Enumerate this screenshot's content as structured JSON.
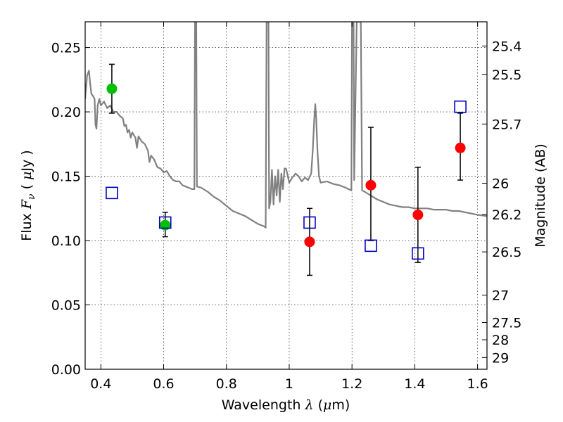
{
  "chart_data": {
    "type": "scatter",
    "xlabel_text": "Wavelength",
    "xlabel_symbol": "λ",
    "xlabel_unit_open": " (",
    "xlabel_unit_mu": "μ",
    "xlabel_unit_close": "m)",
    "ylabel_text": "Flux",
    "ylabel_symbol_base": "F",
    "ylabel_symbol_sub": "ν",
    "ylabel_unit_open": "( ",
    "ylabel_unit_mu": "μ",
    "ylabel_unit_close": "Jy )",
    "y2label": "Magnitude (AB)",
    "xlim": [
      0.35,
      1.63
    ],
    "ylim": [
      0.0,
      0.27
    ],
    "grid": true,
    "x_ticks": [
      {
        "value": 0.4,
        "label": "0.4"
      },
      {
        "value": 0.6,
        "label": "0.6"
      },
      {
        "value": 0.8,
        "label": "0.8"
      },
      {
        "value": 1.0,
        "label": "1"
      },
      {
        "value": 1.2,
        "label": "1.2"
      },
      {
        "value": 1.4,
        "label": "1.4"
      },
      {
        "value": 1.6,
        "label": "1.6"
      }
    ],
    "y_ticks": [
      {
        "value": 0.0,
        "label": "0.00"
      },
      {
        "value": 0.05,
        "label": "0.05"
      },
      {
        "value": 0.1,
        "label": "0.10"
      },
      {
        "value": 0.15,
        "label": "0.15"
      },
      {
        "value": 0.2,
        "label": "0.20"
      },
      {
        "value": 0.25,
        "label": "0.25"
      }
    ],
    "y2_ticks": [
      {
        "value": 25.4,
        "label": "25.4"
      },
      {
        "value": 25.5,
        "label": "25.5"
      },
      {
        "value": 25.7,
        "label": "25.7"
      },
      {
        "value": 26,
        "label": "26"
      },
      {
        "value": 26.2,
        "label": "26.2"
      },
      {
        "value": 26.5,
        "label": "26.5"
      },
      {
        "value": 27,
        "label": "27"
      },
      {
        "value": 27.5,
        "label": "27.5"
      },
      {
        "value": 28,
        "label": "28"
      },
      {
        "value": 29,
        "label": "29"
      }
    ],
    "model_spectrum": {
      "color": "#808080",
      "points": [
        [
          0.35,
          0.21
        ],
        [
          0.356,
          0.228
        ],
        [
          0.362,
          0.232
        ],
        [
          0.366,
          0.222
        ],
        [
          0.37,
          0.214
        ],
        [
          0.376,
          0.212
        ],
        [
          0.38,
          0.21
        ],
        [
          0.383,
          0.19
        ],
        [
          0.386,
          0.187
        ],
        [
          0.39,
          0.205
        ],
        [
          0.395,
          0.21
        ],
        [
          0.4,
          0.205
        ],
        [
          0.41,
          0.208
        ],
        [
          0.42,
          0.203
        ],
        [
          0.43,
          0.205
        ],
        [
          0.44,
          0.2
        ],
        [
          0.45,
          0.2
        ],
        [
          0.46,
          0.197
        ],
        [
          0.47,
          0.195
        ],
        [
          0.475,
          0.189
        ],
        [
          0.48,
          0.19
        ],
        [
          0.485,
          0.184
        ],
        [
          0.49,
          0.186
        ],
        [
          0.495,
          0.18
        ],
        [
          0.5,
          0.184
        ],
        [
          0.51,
          0.18
        ],
        [
          0.515,
          0.172
        ],
        [
          0.52,
          0.181
        ],
        [
          0.53,
          0.177
        ],
        [
          0.54,
          0.175
        ],
        [
          0.55,
          0.17
        ],
        [
          0.555,
          0.161
        ],
        [
          0.56,
          0.166
        ],
        [
          0.57,
          0.163
        ],
        [
          0.58,
          0.157
        ],
        [
          0.59,
          0.156
        ],
        [
          0.6,
          0.153
        ],
        [
          0.61,
          0.154
        ],
        [
          0.62,
          0.15
        ],
        [
          0.63,
          0.147
        ],
        [
          0.64,
          0.146
        ],
        [
          0.65,
          0.146
        ],
        [
          0.66,
          0.143
        ],
        [
          0.67,
          0.142
        ],
        [
          0.68,
          0.141
        ],
        [
          0.69,
          0.14
        ],
        [
          0.698,
          0.14
        ],
        [
          0.7,
          0.27
        ],
        [
          0.704,
          0.27
        ],
        [
          0.706,
          0.142
        ],
        [
          0.72,
          0.141
        ],
        [
          0.74,
          0.138
        ],
        [
          0.76,
          0.134
        ],
        [
          0.78,
          0.131
        ],
        [
          0.8,
          0.127
        ],
        [
          0.82,
          0.123
        ],
        [
          0.84,
          0.121
        ],
        [
          0.86,
          0.119
        ],
        [
          0.88,
          0.116
        ],
        [
          0.9,
          0.113
        ],
        [
          0.92,
          0.111
        ],
        [
          0.925,
          0.11
        ],
        [
          0.928,
          0.27
        ],
        [
          0.934,
          0.27
        ],
        [
          0.936,
          0.125
        ],
        [
          0.94,
          0.13
        ],
        [
          0.945,
          0.155
        ],
        [
          0.95,
          0.128
        ],
        [
          0.955,
          0.15
        ],
        [
          0.96,
          0.135
        ],
        [
          0.965,
          0.155
        ],
        [
          0.97,
          0.13
        ],
        [
          0.975,
          0.152
        ],
        [
          0.98,
          0.14
        ],
        [
          0.985,
          0.156
        ],
        [
          0.99,
          0.156
        ],
        [
          1.0,
          0.145
        ],
        [
          1.01,
          0.149
        ],
        [
          1.02,
          0.152
        ],
        [
          1.03,
          0.15
        ],
        [
          1.04,
          0.146
        ],
        [
          1.05,
          0.149
        ],
        [
          1.06,
          0.147
        ],
        [
          1.07,
          0.152
        ],
        [
          1.075,
          0.17
        ],
        [
          1.08,
          0.195
        ],
        [
          1.083,
          0.206
        ],
        [
          1.086,
          0.195
        ],
        [
          1.09,
          0.17
        ],
        [
          1.095,
          0.15
        ],
        [
          1.1,
          0.145
        ],
        [
          1.12,
          0.146
        ],
        [
          1.14,
          0.144
        ],
        [
          1.16,
          0.143
        ],
        [
          1.18,
          0.141
        ],
        [
          1.198,
          0.139
        ],
        [
          1.2,
          0.27
        ],
        [
          1.205,
          0.27
        ],
        [
          1.207,
          0.147
        ],
        [
          1.215,
          0.27
        ],
        [
          1.228,
          0.27
        ],
        [
          1.232,
          0.139
        ],
        [
          1.24,
          0.138
        ],
        [
          1.26,
          0.135
        ],
        [
          1.28,
          0.132
        ],
        [
          1.3,
          0.13
        ],
        [
          1.32,
          0.128
        ],
        [
          1.34,
          0.127
        ],
        [
          1.36,
          0.126
        ],
        [
          1.38,
          0.126
        ],
        [
          1.4,
          0.125
        ],
        [
          1.42,
          0.125
        ],
        [
          1.44,
          0.125
        ],
        [
          1.46,
          0.124
        ],
        [
          1.48,
          0.124
        ],
        [
          1.5,
          0.124
        ],
        [
          1.52,
          0.123
        ],
        [
          1.54,
          0.123
        ],
        [
          1.56,
          0.122
        ],
        [
          1.58,
          0.121
        ],
        [
          1.6,
          0.12
        ],
        [
          1.63,
          0.119
        ]
      ]
    },
    "series": [
      {
        "marker": "circle",
        "color": "#00c000",
        "points": [
          {
            "x": 0.435,
            "y": 0.218,
            "ylow": 0.199,
            "yhigh": 0.237
          },
          {
            "x": 0.605,
            "y": 0.112,
            "ylow": 0.103,
            "yhigh": 0.122
          }
        ]
      },
      {
        "marker": "circle",
        "color": "#ff0000",
        "points": [
          {
            "x": 1.065,
            "y": 0.099,
            "ylow": 0.073,
            "yhigh": 0.125
          },
          {
            "x": 1.26,
            "y": 0.143,
            "ylow": 0.1,
            "yhigh": 0.188
          },
          {
            "x": 1.41,
            "y": 0.12,
            "ylow": 0.083,
            "yhigh": 0.157
          },
          {
            "x": 1.545,
            "y": 0.172,
            "ylow": 0.147,
            "yhigh": 0.199
          }
        ]
      },
      {
        "marker": "square-open",
        "color": "#0000c0",
        "points": [
          {
            "x": 0.435,
            "y": 0.137
          },
          {
            "x": 0.605,
            "y": 0.114
          },
          {
            "x": 1.065,
            "y": 0.114
          },
          {
            "x": 1.26,
            "y": 0.096
          },
          {
            "x": 1.41,
            "y": 0.09
          },
          {
            "x": 1.545,
            "y": 0.204
          }
        ]
      }
    ]
  }
}
